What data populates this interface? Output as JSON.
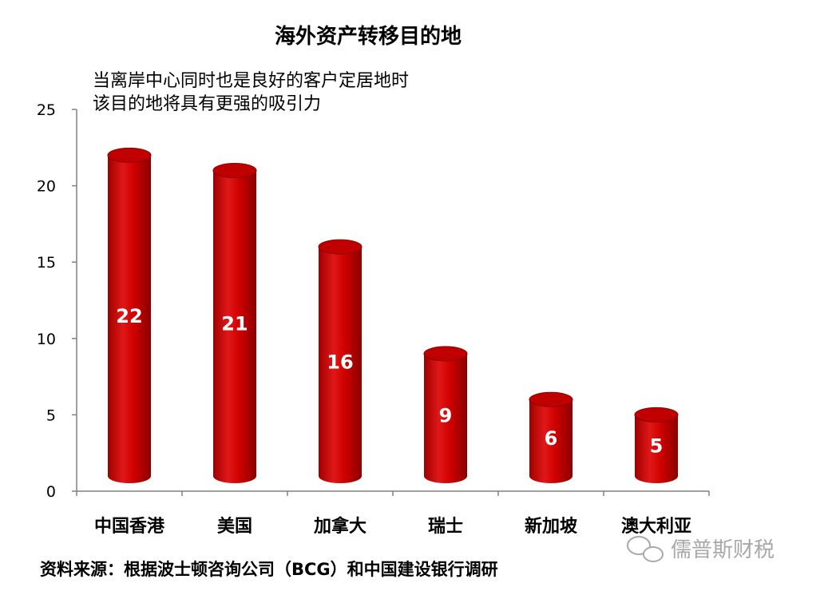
{
  "chart_data": {
    "type": "bar",
    "title": "海外资产转移目的地",
    "subtitle_lines": [
      "当离岸中心同时也是良好的客户定居地时",
      "该目的地将具有更强的吸引力"
    ],
    "categories": [
      "中国香港",
      "美国",
      "加拿大",
      "瑞士",
      "新加坡",
      "澳大利亚"
    ],
    "values": [
      22,
      21,
      16,
      9,
      6,
      5
    ],
    "ylim": [
      0,
      25
    ],
    "yticks": [
      0,
      5,
      10,
      15,
      20,
      25
    ],
    "grid": false,
    "legend": "none",
    "bar_color": "#d40000"
  },
  "source_note": "资料来源：根据波士顿咨询公司（BCG）和中国建设银行调研",
  "watermark": "儒普斯财税"
}
